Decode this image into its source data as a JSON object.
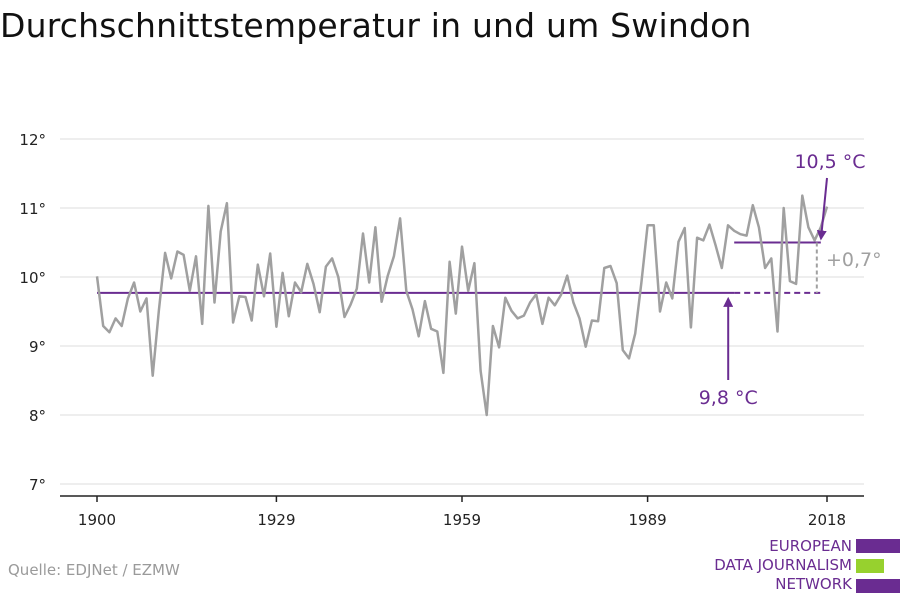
{
  "title": "Durchschnittstemperatur in und um Swindon",
  "source": "Quelle: EDJNet / EZMW",
  "logo": {
    "lines": [
      "EUROPEAN",
      "DATA JOURNALISM",
      "NETWORK"
    ],
    "colors": [
      "#6a2c91",
      "#97d12e",
      "#6a2c91"
    ]
  },
  "colors": {
    "series": "#a0a0a0",
    "accent": "#6a2c91",
    "grid": "#dddddd",
    "axis": "#222222",
    "diff_label": "#a0a0a0"
  },
  "chart_data": {
    "type": "line",
    "title": "Durchschnittstemperatur in und um Swindon",
    "xlim": [
      1900,
      2018
    ],
    "ylim": [
      7,
      12
    ],
    "x_ticks": [
      1900,
      1929,
      1959,
      1989,
      2018
    ],
    "x_tick_labels": [
      "1900",
      "1929",
      "1959",
      "1989",
      "2018"
    ],
    "y_ticks": [
      7,
      8,
      9,
      10,
      11,
      12
    ],
    "y_tick_labels": [
      "7°",
      "8°",
      "9°",
      "10°",
      "11°",
      "12°"
    ],
    "grid": true,
    "series": [
      {
        "x": [
          1900,
          1901,
          1902,
          1903,
          1904,
          1905,
          1906,
          1907,
          1908,
          1909,
          1910,
          1911,
          1912,
          1913,
          1914,
          1915,
          1916,
          1917,
          1918,
          1919,
          1920,
          1921,
          1922,
          1923,
          1924,
          1925,
          1926,
          1927,
          1928,
          1929,
          1930,
          1931,
          1932,
          1933,
          1934,
          1935,
          1936,
          1937,
          1938,
          1939,
          1940,
          1941,
          1942,
          1943,
          1944,
          1945,
          1946,
          1947,
          1948,
          1949,
          1950,
          1951,
          1952,
          1953,
          1954,
          1955,
          1956,
          1957,
          1958,
          1959,
          1960,
          1961,
          1962,
          1963,
          1964,
          1965,
          1966,
          1967,
          1968,
          1969,
          1970,
          1971,
          1972,
          1973,
          1974,
          1975,
          1976,
          1977,
          1978,
          1979,
          1980,
          1981,
          1982,
          1983,
          1984,
          1985,
          1986,
          1987,
          1988,
          1989,
          1990,
          1991,
          1992,
          1993,
          1994,
          1995,
          1996,
          1997,
          1998,
          1999,
          2000,
          2001,
          2002,
          2003,
          2004,
          2005,
          2006,
          2007,
          2008,
          2009,
          2010,
          2011,
          2012,
          2013,
          2014,
          2015,
          2016,
          2017,
          2018
        ],
        "values": [
          10.01,
          9.29,
          9.2,
          9.4,
          9.29,
          9.69,
          9.92,
          9.5,
          9.69,
          8.57,
          9.52,
          10.35,
          9.98,
          10.37,
          10.32,
          9.8,
          10.3,
          9.32,
          11.03,
          9.63,
          10.66,
          11.07,
          9.34,
          9.72,
          9.71,
          9.37,
          10.18,
          9.72,
          10.34,
          9.28,
          10.06,
          9.43,
          9.92,
          9.78,
          10.19,
          9.9,
          9.49,
          10.15,
          10.27,
          10.0,
          9.42,
          9.6,
          9.83,
          10.63,
          9.92,
          10.72,
          9.64,
          10.02,
          10.3,
          10.85,
          9.8,
          9.53,
          9.14,
          9.65,
          9.25,
          9.21,
          8.61,
          10.22,
          9.47,
          10.44,
          9.8,
          10.2,
          8.64,
          8.0,
          9.29,
          8.98,
          9.7,
          9.51,
          9.4,
          9.44,
          9.63,
          9.75,
          9.32,
          9.7,
          9.59,
          9.74,
          10.02,
          9.63,
          9.4,
          8.99,
          9.37,
          9.36,
          10.13,
          10.16,
          9.91,
          8.94,
          8.82,
          9.18,
          9.92,
          10.75,
          10.75,
          9.5,
          9.92,
          9.69,
          10.51,
          10.71,
          9.27,
          10.57,
          10.53,
          10.76,
          10.46,
          10.13,
          10.75,
          10.67,
          10.62,
          10.6,
          11.04,
          10.72,
          10.13,
          10.27,
          9.21,
          11.0,
          9.94,
          9.9,
          11.18,
          10.72,
          10.53,
          10.72,
          11.02
        ]
      }
    ],
    "reference_lines": [
      {
        "label": "9,8 °C",
        "value": 9.77,
        "from": 1900,
        "to": 2003,
        "dashed_from": 2003,
        "dashed_to": 2017
      },
      {
        "label": "10,5 °C",
        "value": 10.5,
        "from": 2003,
        "to": 2017
      }
    ],
    "difference_label": "+0,7°"
  }
}
